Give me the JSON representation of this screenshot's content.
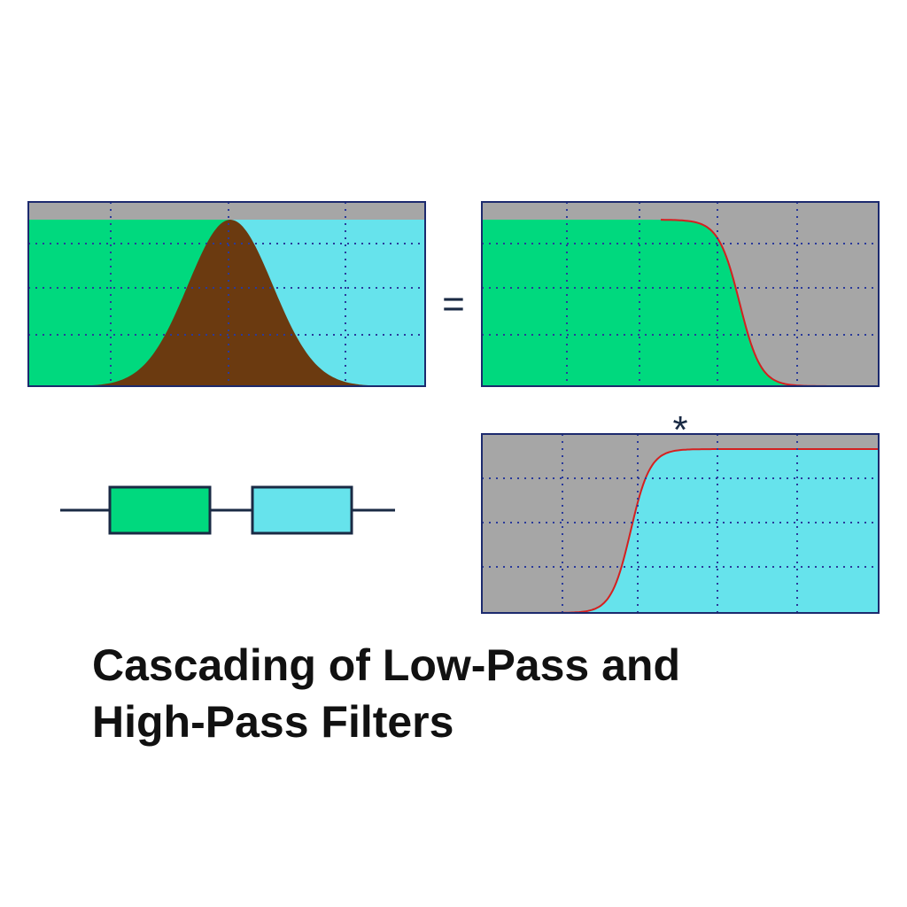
{
  "operators": {
    "equals": "=",
    "convolve": "*"
  },
  "title": {
    "lines": [
      "Cascading of Low-Pass and",
      "High-Pass Filters"
    ]
  }
}
